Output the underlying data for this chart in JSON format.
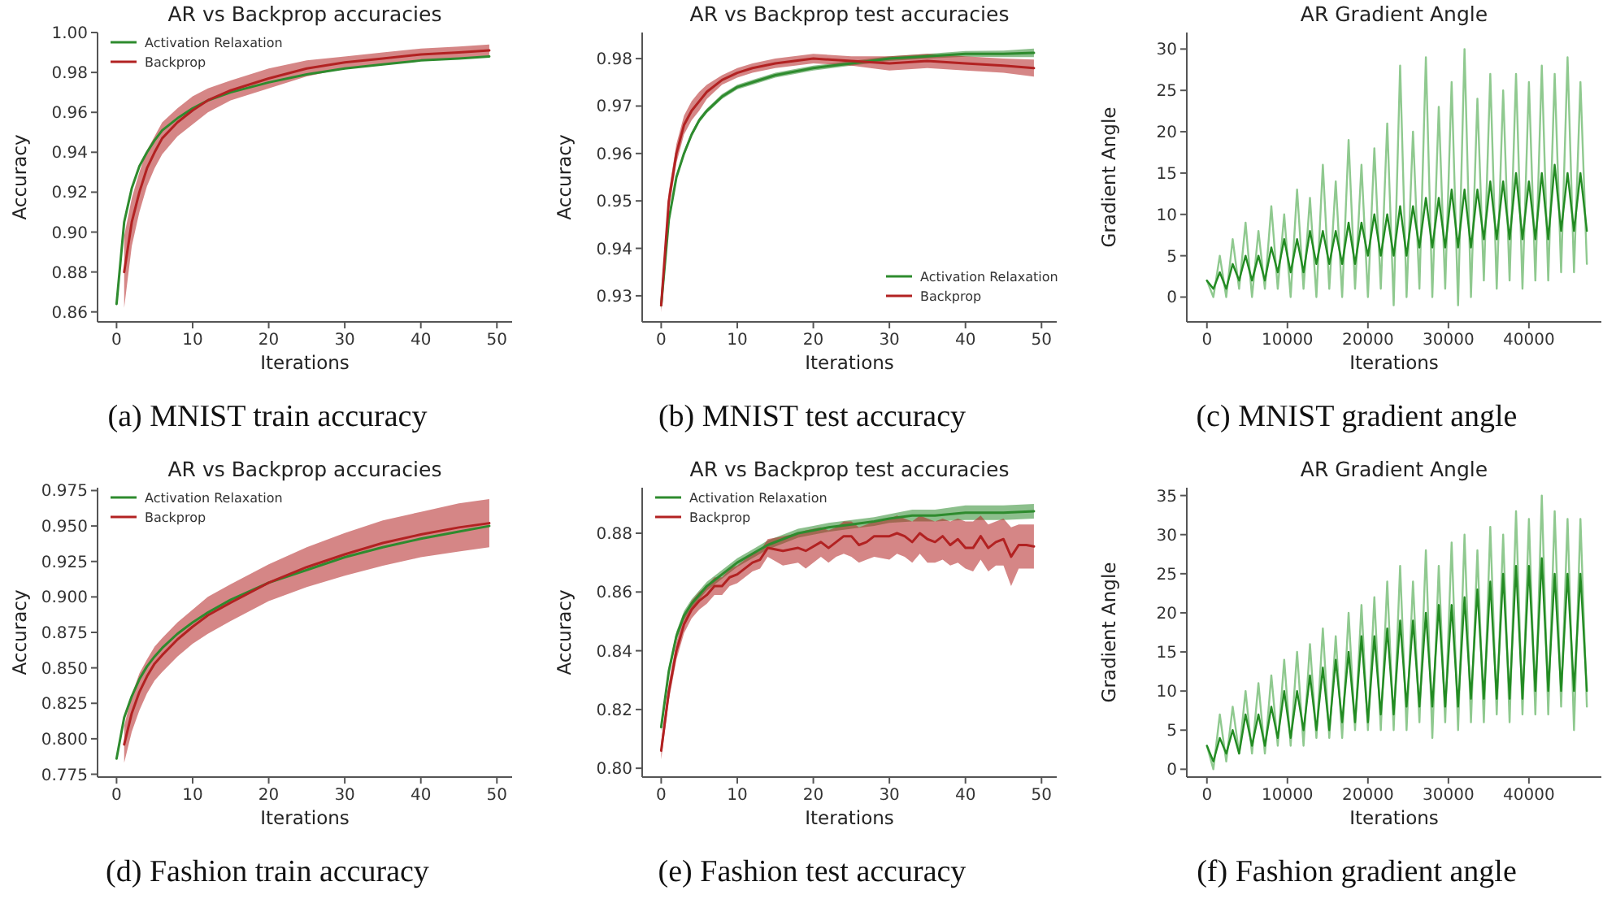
{
  "chart_data": [
    {
      "type": "line",
      "title": "AR vs Backprop accuracies",
      "xlabel": "Iterations",
      "ylabel": "Accuracy",
      "annotations": [
        "(a) MNIST train accuracy"
      ],
      "xlim": [
        -2.5,
        52
      ],
      "xticks": [
        0,
        10,
        20,
        30,
        40,
        50
      ],
      "ylim": [
        0.855,
        1.0
      ],
      "yticks": [
        0.86,
        0.88,
        {
          "value": 0.9,
          "label": "0.90"
        },
        0.92,
        0.94,
        0.96,
        0.98,
        {
          "value": 1.0,
          "label": "1.00"
        }
      ],
      "legend": "top left",
      "series": [
        {
          "name": "Activation Relaxation",
          "color": "#2e8b2e",
          "x": [
            0,
            1,
            2,
            3,
            4,
            5,
            6,
            8,
            10,
            12,
            15,
            20,
            25,
            30,
            35,
            40,
            45,
            49
          ],
          "values": [
            0.864,
            0.905,
            0.922,
            0.933,
            0.94,
            0.946,
            0.951,
            0.957,
            0.962,
            0.966,
            0.97,
            0.975,
            0.979,
            0.982,
            0.984,
            0.986,
            0.987,
            0.988
          ]
        },
        {
          "name": "Backprop",
          "color": "#b22222",
          "x": [
            1,
            2,
            3,
            4,
            5,
            6,
            8,
            10,
            12,
            15,
            20,
            25,
            30,
            35,
            40,
            45,
            49
          ],
          "values": [
            0.88,
            0.905,
            0.92,
            0.932,
            0.94,
            0.947,
            0.955,
            0.961,
            0.966,
            0.971,
            0.977,
            0.982,
            0.985,
            0.987,
            0.989,
            0.99,
            0.991
          ],
          "lower": [
            0.862,
            0.893,
            0.91,
            0.923,
            0.932,
            0.939,
            0.948,
            0.954,
            0.96,
            0.966,
            0.972,
            0.978,
            0.982,
            0.984,
            0.986,
            0.987,
            0.988
          ],
          "upper": [
            0.898,
            0.917,
            0.93,
            0.941,
            0.948,
            0.955,
            0.962,
            0.968,
            0.972,
            0.976,
            0.982,
            0.986,
            0.988,
            0.99,
            0.992,
            0.993,
            0.994
          ]
        }
      ]
    },
    {
      "type": "line",
      "title": "AR vs Backprop test accuracies",
      "xlabel": "Iterations",
      "ylabel": "Accuracy",
      "annotations": [
        "(b) MNIST test accuracy"
      ],
      "xlim": [
        -2.5,
        52
      ],
      "xticks": [
        0,
        10,
        20,
        30,
        40,
        50
      ],
      "ylim": [
        0.9245,
        0.9855
      ],
      "yticks": [
        0.93,
        0.94,
        0.95,
        0.96,
        0.97,
        0.98
      ],
      "legend": "bottom right",
      "series": [
        {
          "name": "Activation Relaxation",
          "color": "#2e8b2e",
          "x": [
            0,
            1,
            2,
            3,
            4,
            5,
            6,
            8,
            10,
            12,
            15,
            20,
            25,
            30,
            35,
            40,
            45,
            49
          ],
          "values": [
            0.928,
            0.946,
            0.955,
            0.96,
            0.964,
            0.967,
            0.969,
            0.972,
            0.974,
            0.975,
            0.9765,
            0.978,
            0.979,
            0.98,
            0.9805,
            0.981,
            0.981,
            0.9812
          ],
          "lower": [
            0.9272,
            0.9455,
            0.9545,
            0.9595,
            0.9635,
            0.9665,
            0.9685,
            0.9715,
            0.9735,
            0.9745,
            0.976,
            0.9775,
            0.9785,
            0.9795,
            0.98,
            0.9804,
            0.9803,
            0.9803
          ],
          "upper": [
            0.9288,
            0.9465,
            0.9555,
            0.9605,
            0.9645,
            0.9675,
            0.9695,
            0.9725,
            0.9745,
            0.9755,
            0.977,
            0.9785,
            0.9795,
            0.9805,
            0.981,
            0.9816,
            0.9817,
            0.9821
          ]
        },
        {
          "name": "Backprop",
          "color": "#b22222",
          "x": [
            0,
            1,
            2,
            3,
            4,
            5,
            6,
            8,
            10,
            12,
            15,
            20,
            25,
            30,
            35,
            40,
            45,
            49
          ],
          "values": [
            0.928,
            0.95,
            0.96,
            0.966,
            0.969,
            0.971,
            0.973,
            0.9755,
            0.977,
            0.978,
            0.979,
            0.98,
            0.9795,
            0.979,
            0.9795,
            0.979,
            0.9785,
            0.978
          ],
          "lower": [
            0.9265,
            0.948,
            0.958,
            0.964,
            0.967,
            0.969,
            0.9715,
            0.9745,
            0.976,
            0.977,
            0.978,
            0.979,
            0.9785,
            0.9775,
            0.978,
            0.9775,
            0.977,
            0.9762
          ],
          "upper": [
            0.9295,
            0.952,
            0.962,
            0.968,
            0.971,
            0.973,
            0.9745,
            0.9765,
            0.978,
            0.979,
            0.98,
            0.981,
            0.9805,
            0.9805,
            0.981,
            0.9805,
            0.98,
            0.9798
          ]
        }
      ]
    },
    {
      "type": "line",
      "title": "AR Gradient Angle",
      "xlabel": "Iterations",
      "ylabel": "Gradient Angle",
      "annotations": [
        "(c) MNIST gradient angle"
      ],
      "xlim": [
        -2500,
        49000
      ],
      "xticks": [
        0,
        10000,
        20000,
        30000,
        40000
      ],
      "ylim": [
        -3,
        32
      ],
      "yticks": [
        0,
        5,
        10,
        15,
        20,
        25,
        30
      ],
      "series": [
        {
          "color": "#8fc98f",
          "x": [
            0,
            800,
            1600,
            2400,
            3200,
            4000,
            4800,
            5600,
            6400,
            7200,
            8000,
            8800,
            9600,
            10400,
            11200,
            12000,
            12800,
            13600,
            14400,
            15200,
            16000,
            16800,
            17600,
            18400,
            19200,
            20000,
            20800,
            21600,
            22400,
            23200,
            24000,
            24800,
            25600,
            26400,
            27200,
            28000,
            28800,
            29600,
            30400,
            31200,
            32000,
            32800,
            33600,
            34400,
            35200,
            36000,
            36800,
            37600,
            38400,
            39200,
            40000,
            40800,
            41600,
            42400,
            43200,
            44000,
            44800,
            45600,
            46400,
            47200
          ],
          "values": [
            2,
            0,
            5,
            0,
            7,
            1,
            9,
            0,
            8,
            1,
            11,
            1,
            10,
            0,
            13,
            1,
            12,
            0,
            16,
            1,
            14,
            0,
            19,
            1,
            16,
            0,
            18,
            1,
            21,
            -1,
            28,
            0,
            20,
            1,
            29,
            0,
            23,
            1,
            26,
            -1,
            30,
            0,
            24,
            2,
            27,
            1,
            25,
            2,
            27,
            1,
            26,
            2,
            28,
            2,
            27,
            3,
            29,
            3,
            26,
            4
          ]
        },
        {
          "color": "#228b22",
          "x": [
            0,
            800,
            1600,
            2400,
            3200,
            4000,
            4800,
            5600,
            6400,
            7200,
            8000,
            8800,
            9600,
            10400,
            11200,
            12000,
            12800,
            13600,
            14400,
            15200,
            16000,
            16800,
            17600,
            18400,
            19200,
            20000,
            20800,
            21600,
            22400,
            23200,
            24000,
            24800,
            25600,
            26400,
            27200,
            28000,
            28800,
            29600,
            30400,
            31200,
            32000,
            32800,
            33600,
            34400,
            35200,
            36000,
            36800,
            37600,
            38400,
            39200,
            40000,
            40800,
            41600,
            42400,
            43200,
            44000,
            44800,
            45600,
            46400,
            47200
          ],
          "values": [
            2,
            1,
            3,
            1,
            4,
            2,
            5,
            2,
            5,
            2,
            6,
            3,
            7,
            3,
            7,
            3,
            8,
            4,
            8,
            4,
            8,
            4,
            9,
            4,
            9,
            5,
            10,
            5,
            10,
            5,
            11,
            5,
            11,
            6,
            12,
            6,
            12,
            6,
            13,
            6,
            13,
            6,
            13,
            7,
            14,
            7,
            14,
            7,
            15,
            7,
            14,
            7,
            15,
            7,
            16,
            8,
            15,
            8,
            15,
            8
          ]
        }
      ]
    },
    {
      "type": "line",
      "title": "AR vs Backprop accuracies",
      "xlabel": "Iterations",
      "ylabel": "Accuracy",
      "annotations": [
        "(d) Fashion train accuracy"
      ],
      "xlim": [
        -2.5,
        52
      ],
      "xticks": [
        0,
        10,
        20,
        30,
        40,
        50
      ],
      "ylim": [
        0.773,
        0.977
      ],
      "yticks": [
        0.775,
        {
          "value": 0.8,
          "label": "0.800"
        },
        0.825,
        {
          "value": 0.85,
          "label": "0.850"
        },
        0.875,
        {
          "value": 0.9,
          "label": "0.900"
        },
        0.925,
        {
          "value": 0.95,
          "label": "0.950"
        },
        0.975
      ],
      "legend": "top left",
      "series": [
        {
          "name": "Activation Relaxation",
          "color": "#2e8b2e",
          "x": [
            0,
            1,
            2,
            3,
            4,
            5,
            6,
            8,
            10,
            12,
            15,
            20,
            25,
            30,
            35,
            40,
            45,
            49
          ],
          "values": [
            0.786,
            0.815,
            0.83,
            0.842,
            0.851,
            0.858,
            0.864,
            0.874,
            0.882,
            0.889,
            0.898,
            0.91,
            0.919,
            0.928,
            0.935,
            0.941,
            0.946,
            0.95
          ]
        },
        {
          "name": "Backprop",
          "color": "#b22222",
          "x": [
            1,
            2,
            3,
            4,
            5,
            6,
            8,
            10,
            12,
            15,
            20,
            25,
            30,
            35,
            40,
            45,
            49
          ],
          "values": [
            0.796,
            0.818,
            0.833,
            0.844,
            0.853,
            0.859,
            0.87,
            0.879,
            0.887,
            0.896,
            0.91,
            0.921,
            0.93,
            0.938,
            0.944,
            0.949,
            0.952
          ],
          "lower": [
            0.783,
            0.805,
            0.82,
            0.832,
            0.841,
            0.847,
            0.858,
            0.867,
            0.874,
            0.883,
            0.897,
            0.907,
            0.915,
            0.922,
            0.928,
            0.932,
            0.935
          ],
          "upper": [
            0.809,
            0.831,
            0.846,
            0.856,
            0.865,
            0.871,
            0.882,
            0.891,
            0.9,
            0.909,
            0.923,
            0.935,
            0.945,
            0.954,
            0.96,
            0.966,
            0.969
          ]
        }
      ]
    },
    {
      "type": "line",
      "title": "AR vs Backprop test accuracies",
      "xlabel": "Iterations",
      "ylabel": "Accuracy",
      "annotations": [
        "(e) Fashion test accuracy"
      ],
      "xlim": [
        -2.5,
        52
      ],
      "xticks": [
        0,
        10,
        20,
        30,
        40,
        50
      ],
      "ylim": [
        0.797,
        0.8955
      ],
      "yticks": [
        {
          "value": 0.8,
          "label": "0.80"
        },
        0.82,
        0.84,
        0.86,
        0.88
      ],
      "legend": "top left",
      "series": [
        {
          "name": "Activation Relaxation",
          "color": "#2e8b2e",
          "x": [
            0,
            1,
            2,
            3,
            4,
            5,
            6,
            8,
            10,
            12,
            14,
            16,
            18,
            20,
            22,
            25,
            28,
            30,
            33,
            36,
            40,
            45,
            49
          ],
          "values": [
            0.814,
            0.833,
            0.845,
            0.852,
            0.856,
            0.859,
            0.862,
            0.866,
            0.87,
            0.873,
            0.876,
            0.878,
            0.88,
            0.881,
            0.882,
            0.883,
            0.884,
            0.885,
            0.886,
            0.886,
            0.887,
            0.887,
            0.8875
          ],
          "lower": [
            0.8125,
            0.8315,
            0.8435,
            0.8505,
            0.8545,
            0.8575,
            0.8605,
            0.8645,
            0.8685,
            0.8715,
            0.8745,
            0.8765,
            0.8785,
            0.8795,
            0.8805,
            0.8815,
            0.8825,
            0.8835,
            0.884,
            0.884,
            0.8845,
            0.8845,
            0.885
          ],
          "upper": [
            0.8155,
            0.8345,
            0.8465,
            0.8535,
            0.8575,
            0.8605,
            0.8635,
            0.8675,
            0.8715,
            0.8745,
            0.8775,
            0.8795,
            0.8815,
            0.8825,
            0.8835,
            0.8845,
            0.8855,
            0.8865,
            0.888,
            0.888,
            0.8895,
            0.8895,
            0.89
          ]
        },
        {
          "name": "Backprop",
          "color": "#b22222",
          "x": [
            0,
            1,
            2,
            3,
            4,
            5,
            6,
            7,
            8,
            9,
            10,
            12,
            13,
            14,
            16,
            18,
            19,
            21,
            22,
            23,
            24,
            25,
            26,
            27,
            28,
            30,
            31,
            32,
            33,
            34,
            35,
            36,
            37,
            38,
            39,
            40,
            41,
            42,
            43,
            44,
            45,
            46,
            47,
            48,
            49
          ],
          "values": [
            0.806,
            0.826,
            0.84,
            0.849,
            0.854,
            0.857,
            0.859,
            0.862,
            0.862,
            0.865,
            0.866,
            0.87,
            0.871,
            0.875,
            0.874,
            0.875,
            0.874,
            0.877,
            0.875,
            0.877,
            0.879,
            0.879,
            0.876,
            0.877,
            0.879,
            0.879,
            0.88,
            0.879,
            0.877,
            0.88,
            0.878,
            0.877,
            0.879,
            0.876,
            0.878,
            0.875,
            0.875,
            0.879,
            0.875,
            0.877,
            0.878,
            0.872,
            0.876,
            0.876,
            0.8755
          ],
          "lower": [
            0.803,
            0.823,
            0.837,
            0.846,
            0.851,
            0.854,
            0.856,
            0.859,
            0.859,
            0.862,
            0.863,
            0.867,
            0.868,
            0.872,
            0.869,
            0.87,
            0.868,
            0.872,
            0.87,
            0.872,
            0.873,
            0.872,
            0.87,
            0.871,
            0.872,
            0.871,
            0.873,
            0.872,
            0.87,
            0.873,
            0.87,
            0.87,
            0.871,
            0.869,
            0.87,
            0.868,
            0.867,
            0.871,
            0.867,
            0.869,
            0.869,
            0.862,
            0.868,
            0.868,
            0.868
          ],
          "upper": [
            0.809,
            0.829,
            0.843,
            0.852,
            0.857,
            0.86,
            0.862,
            0.865,
            0.865,
            0.868,
            0.869,
            0.873,
            0.874,
            0.878,
            0.879,
            0.88,
            0.881,
            0.882,
            0.881,
            0.882,
            0.884,
            0.884,
            0.882,
            0.883,
            0.884,
            0.885,
            0.886,
            0.885,
            0.884,
            0.886,
            0.885,
            0.884,
            0.885,
            0.884,
            0.885,
            0.884,
            0.884,
            0.886,
            0.883,
            0.884,
            0.885,
            0.882,
            0.883,
            0.883,
            0.883
          ]
        }
      ]
    },
    {
      "type": "line",
      "title": "AR Gradient Angle",
      "xlabel": "Iterations",
      "ylabel": "Gradient Angle",
      "annotations": [
        "(f) Fashion gradient angle"
      ],
      "xlim": [
        -2500,
        49000
      ],
      "xticks": [
        0,
        10000,
        20000,
        30000,
        40000
      ],
      "ylim": [
        -1,
        36
      ],
      "yticks": [
        0,
        5,
        10,
        15,
        20,
        25,
        30,
        35
      ],
      "series": [
        {
          "color": "#8fc98f",
          "x": [
            0,
            800,
            1600,
            2400,
            3200,
            4000,
            4800,
            5600,
            6400,
            7200,
            8000,
            8800,
            9600,
            10400,
            11200,
            12000,
            12800,
            13600,
            14400,
            15200,
            16000,
            16800,
            17600,
            18400,
            19200,
            20000,
            20800,
            21600,
            22400,
            23200,
            24000,
            24800,
            25600,
            26400,
            27200,
            28000,
            28800,
            29600,
            30400,
            31200,
            32000,
            32800,
            33600,
            34400,
            35200,
            36000,
            36800,
            37600,
            38400,
            39200,
            40000,
            40800,
            41600,
            42400,
            43200,
            44000,
            44800,
            45600,
            46400,
            47200
          ],
          "values": [
            3,
            0,
            7,
            1,
            8,
            2,
            10,
            2,
            11,
            2,
            12,
            3,
            14,
            3,
            15,
            3,
            16,
            4,
            18,
            4,
            17,
            4,
            20,
            5,
            21,
            5,
            22,
            5,
            24,
            5,
            26,
            5,
            24,
            6,
            28,
            4,
            26,
            6,
            29,
            5,
            30,
            6,
            28,
            6,
            31,
            7,
            30,
            6,
            33,
            7,
            32,
            7,
            35,
            7,
            33,
            8,
            32,
            5,
            32,
            8
          ]
        },
        {
          "color": "#228b22",
          "x": [
            0,
            800,
            1600,
            2400,
            3200,
            4000,
            4800,
            5600,
            6400,
            7200,
            8000,
            8800,
            9600,
            10400,
            11200,
            12000,
            12800,
            13600,
            14400,
            15200,
            16000,
            16800,
            17600,
            18400,
            19200,
            20000,
            20800,
            21600,
            22400,
            23200,
            24000,
            24800,
            25600,
            26400,
            27200,
            28000,
            28800,
            29600,
            30400,
            31200,
            32000,
            32800,
            33600,
            34400,
            35200,
            36000,
            36800,
            37600,
            38400,
            39200,
            40000,
            40800,
            41600,
            42400,
            43200,
            44000,
            44800,
            45600,
            46400,
            47200
          ],
          "values": [
            3,
            1,
            4,
            2,
            5,
            2,
            7,
            3,
            7,
            3,
            8,
            4,
            10,
            4,
            10,
            5,
            12,
            5,
            13,
            5,
            14,
            6,
            15,
            6,
            17,
            6,
            17,
            7,
            18,
            7,
            19,
            8,
            19,
            8,
            20,
            8,
            21,
            8,
            21,
            8,
            22,
            9,
            23,
            9,
            24,
            9,
            25,
            9,
            26,
            9,
            26,
            10,
            27,
            10,
            25,
            10,
            25,
            10,
            25,
            10
          ]
        }
      ]
    }
  ]
}
